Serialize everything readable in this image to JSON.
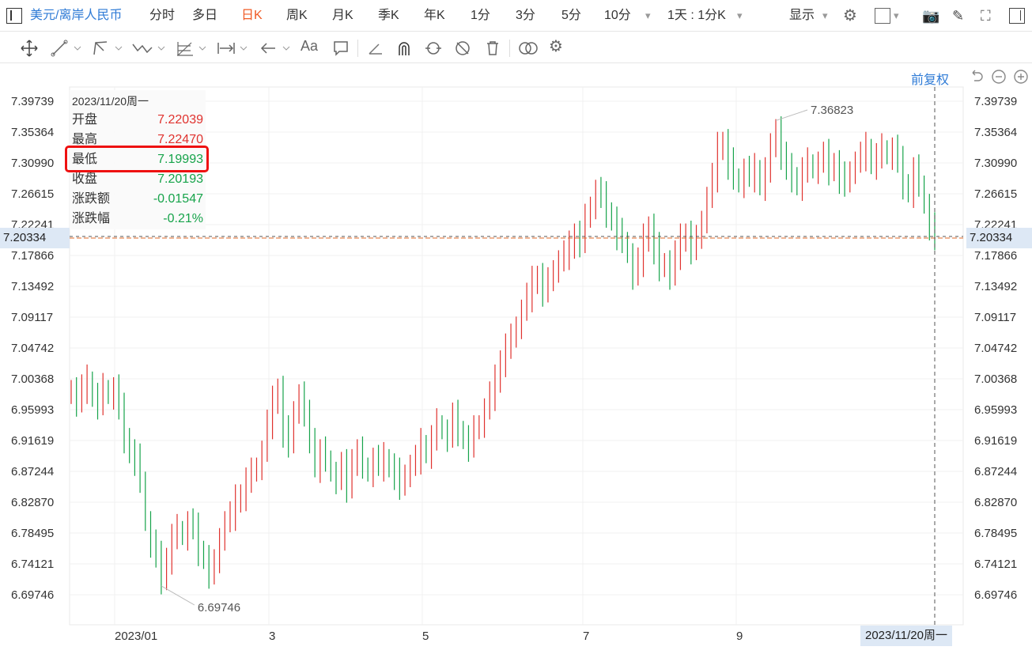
{
  "header": {
    "symbol": "美元/离岸人民币",
    "periods": [
      "分时",
      "多日",
      "日K",
      "周K",
      "月K",
      "季K",
      "年K",
      "1分",
      "3分",
      "5分",
      "10分"
    ],
    "active_period": "日K",
    "interval": "1天 : 1分K",
    "display": "显示"
  },
  "adjust": "前复权",
  "info": {
    "date": "2023/11/20周一",
    "rows": [
      {
        "label": "开盘",
        "value": "7.22039",
        "color": "red"
      },
      {
        "label": "最高",
        "value": "7.22470",
        "color": "red"
      },
      {
        "label": "最低",
        "value": "7.19993",
        "color": "green"
      },
      {
        "label": "收盘",
        "value": "7.20193",
        "color": "green"
      },
      {
        "label": "涨跌额",
        "value": "-0.01547",
        "color": "green"
      },
      {
        "label": "涨跌幅",
        "value": "-0.21%",
        "color": "green"
      }
    ]
  },
  "crosshair": {
    "price": "7.20334",
    "date": "2023/11/20周一"
  },
  "colors": {
    "up": "#e0322e",
    "down": "#16a34a",
    "accent": "#2f7bd6",
    "active": "#f05a24"
  },
  "chart_data": {
    "type": "ohlc",
    "y_ticks": [
      "7.39739",
      "7.35364",
      "7.30990",
      "7.26615",
      "7.22241",
      "7.17866",
      "7.13492",
      "7.09117",
      "7.04742",
      "7.00368",
      "6.95993",
      "6.91619",
      "6.87244",
      "6.82870",
      "6.78495",
      "6.74121",
      "6.69746"
    ],
    "ylim": [
      6.69746,
      7.39739
    ],
    "x_ticks": [
      "2023/01",
      "3",
      "5",
      "7",
      "9"
    ],
    "max_annotation": "7.36823",
    "min_annotation": "6.69746",
    "series_close": [
      6.99,
      6.97,
      6.99,
      7.0,
      6.98,
      6.97,
      6.99,
      6.98,
      6.99,
      6.96,
      6.92,
      6.9,
      6.89,
      6.86,
      6.8,
      6.77,
      6.75,
      6.72,
      6.75,
      6.78,
      6.79,
      6.78,
      6.8,
      6.79,
      6.76,
      6.75,
      6.73,
      6.74,
      6.78,
      6.8,
      6.81,
      6.83,
      6.84,
      6.86,
      6.87,
      6.88,
      6.9,
      6.94,
      6.97,
      6.99,
      6.93,
      6.91,
      6.96,
      6.98,
      6.95,
      6.92,
      6.88,
      6.9,
      6.89,
      6.87,
      6.86,
      6.88,
      6.85,
      6.89,
      6.9,
      6.88,
      6.87,
      6.89,
      6.88,
      6.89,
      6.88,
      6.87,
      6.85,
      6.87,
      6.88,
      6.89,
      6.91,
      6.9,
      6.92,
      6.94,
      6.93,
      6.92,
      6.95,
      6.93,
      6.92,
      6.91,
      6.93,
      6.94,
      6.96,
      6.98,
      7.0,
      7.03,
      7.05,
      7.06,
      7.08,
      7.1,
      7.12,
      7.14,
      7.15,
      7.13,
      7.14,
      7.16,
      7.17,
      7.18,
      7.19,
      7.21,
      7.2,
      7.23,
      7.25,
      7.27,
      7.26,
      7.24,
      7.23,
      7.21,
      7.2,
      7.18,
      7.15,
      7.17,
      7.2,
      7.22,
      7.19,
      7.16,
      7.17,
      7.15,
      7.18,
      7.2,
      7.21,
      7.19,
      7.2,
      7.23,
      7.26,
      7.29,
      7.33,
      7.34,
      7.31,
      7.29,
      7.28,
      7.3,
      7.29,
      7.3,
      7.28,
      7.3,
      7.33,
      7.36,
      7.32,
      7.3,
      7.29,
      7.28,
      7.3,
      7.31,
      7.3,
      7.31,
      7.32,
      7.3,
      7.31,
      7.29,
      7.28,
      7.3,
      7.31,
      7.32,
      7.33,
      7.31,
      7.32,
      7.33,
      7.32,
      7.33,
      7.31,
      7.28,
      7.27,
      7.3,
      7.28,
      7.25,
      7.22,
      7.2
    ]
  }
}
